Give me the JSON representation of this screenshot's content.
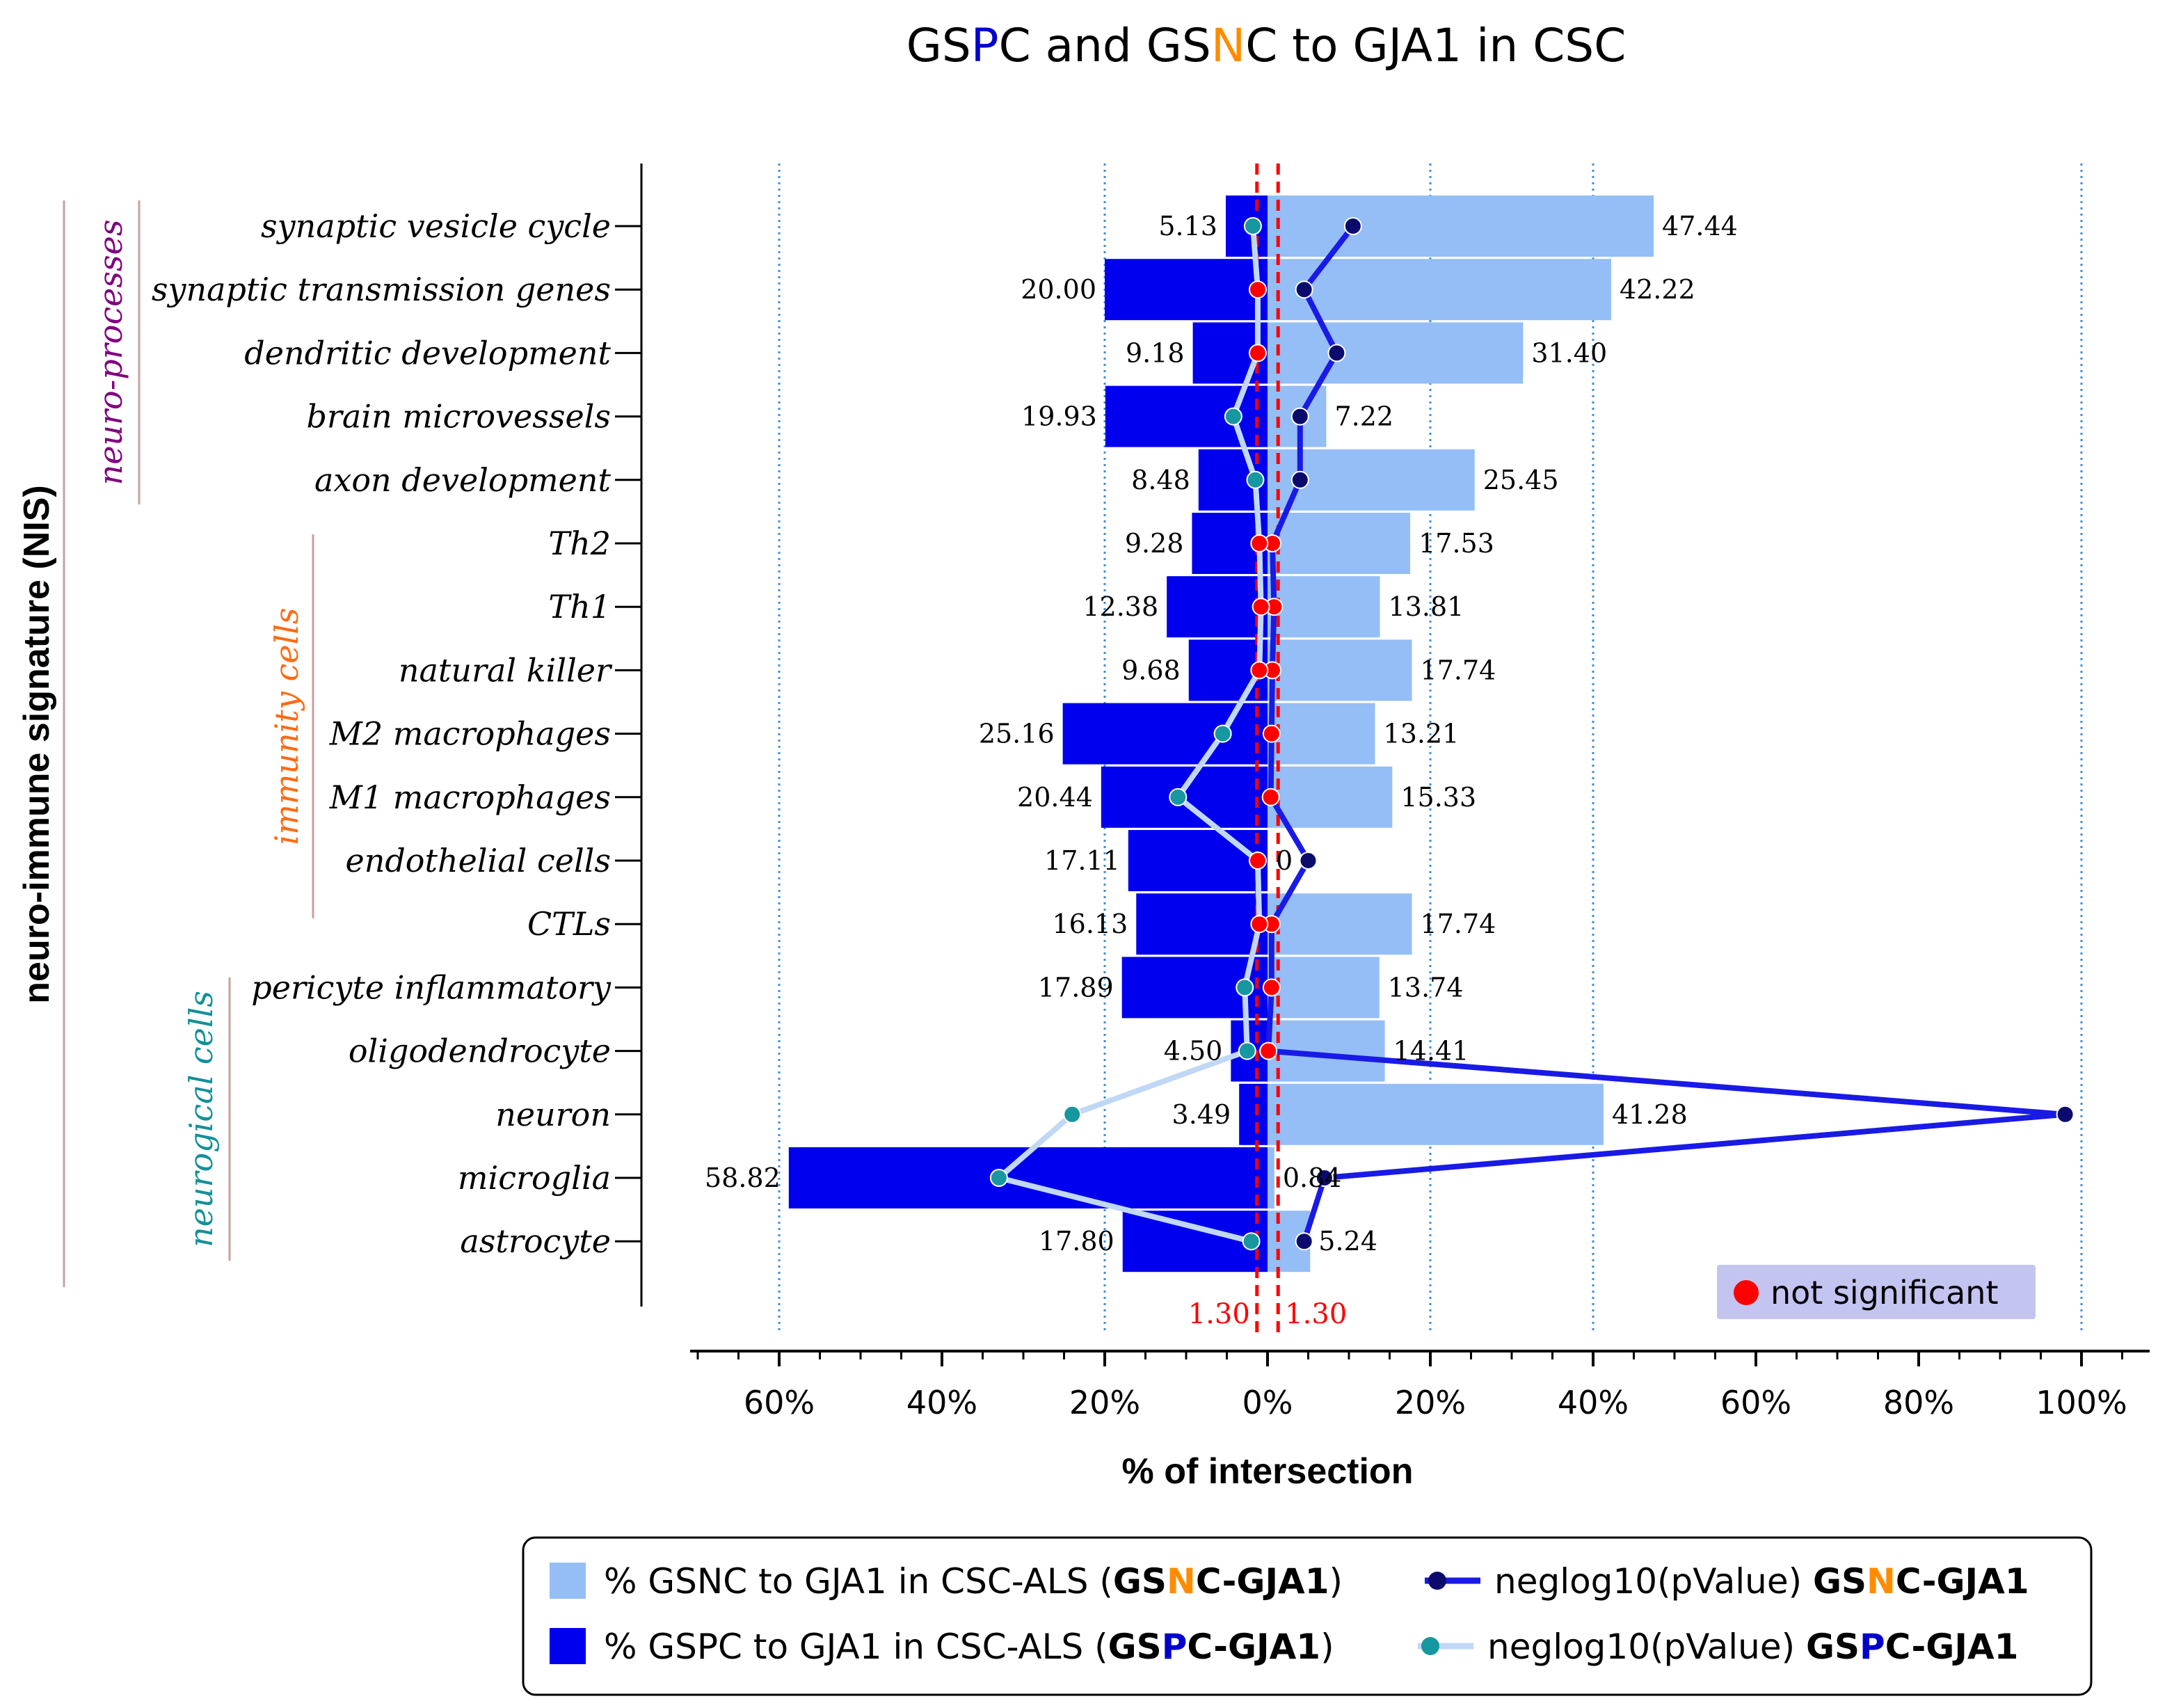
{
  "chart_data": {
    "type": "bar",
    "title_parts": [
      {
        "text": "GS",
        "color": "#000000"
      },
      {
        "text": "P",
        "color": "#0000cc"
      },
      {
        "text": "C and GS",
        "color": "#000000"
      },
      {
        "text": "N",
        "color": "#ff8c00"
      },
      {
        "text": "C to GJA1 in CSC",
        "color": "#000000"
      }
    ],
    "xlabel": "% of intersection",
    "ylabel": "neuro-immune signature (NIS)",
    "x_ticks": [
      {
        "value": -60,
        "label": "60%"
      },
      {
        "value": -40,
        "label": "40%"
      },
      {
        "value": -20,
        "label": "20%"
      },
      {
        "value": 0,
        "label": "0%"
      },
      {
        "value": 20,
        "label": "20%"
      },
      {
        "value": 40,
        "label": "40%"
      },
      {
        "value": 60,
        "label": "60%"
      },
      {
        "value": 80,
        "label": "80%"
      },
      {
        "value": 100,
        "label": "100%"
      }
    ],
    "xlim": [
      -70,
      110
    ],
    "gridlines_at": [
      -60,
      -20,
      20,
      40,
      100
    ],
    "categories": [
      "synaptic vesicle cycle",
      "synaptic transmission genes",
      "dendritic development",
      "brain microvessels",
      "axon development",
      "Th2",
      "Th1",
      "natural killer",
      "M2 macrophages",
      "M1 macrophages",
      "endothelial cells",
      "CTLs",
      "pericyte inflammatory",
      "oligodendrocyte",
      "neuron",
      "microglia",
      "astrocyte"
    ],
    "groups": [
      {
        "name": "neuro-processes",
        "color": "#800080",
        "from": 0,
        "to": 4
      },
      {
        "name": "immunity cells",
        "color": "#ff6a13",
        "from": 5,
        "to": 11
      },
      {
        "name": "neurogical cells",
        "color": "#12909a",
        "from": 12,
        "to": 16
      }
    ],
    "series": [
      {
        "name": "% GSPC to GJA1 in CSC-ALS (GSPC-GJA1)",
        "color": "#0000ee",
        "side": "left",
        "values": [
          5.13,
          20.0,
          9.18,
          19.93,
          8.48,
          9.28,
          12.38,
          9.68,
          25.16,
          20.44,
          17.11,
          16.13,
          17.89,
          4.5,
          3.49,
          58.82,
          17.8
        ],
        "labels": [
          "5.13",
          "20.00",
          "9.18",
          "19.93",
          "8.48",
          "9.28",
          "12.38",
          "9.68",
          "25.16",
          "20.44",
          "17.11",
          "16.13",
          "17.89",
          "4.50",
          "3.49",
          "58.82",
          "17.80"
        ]
      },
      {
        "name": "% GSNC to GJA1 in CSC-ALS (GSNC-GJA1)",
        "color": "#94bef5",
        "side": "right",
        "values": [
          47.44,
          42.22,
          31.4,
          7.22,
          25.45,
          17.53,
          13.81,
          17.74,
          13.21,
          15.33,
          0,
          17.74,
          13.74,
          14.41,
          41.28,
          0.84,
          5.24
        ],
        "labels": [
          "47.44",
          "42.22",
          "31.40",
          "7.22",
          "25.45",
          "17.53",
          "13.81",
          "17.74",
          "13.21",
          "15.33",
          "0",
          "17.74",
          "13.74",
          "14.41",
          "41.28",
          "0.84",
          "5.24"
        ]
      }
    ],
    "lines": [
      {
        "name": "neglog10(pValue) GSNC-GJA1",
        "color": "#1a1ae6",
        "marker_color": "#0b0b6e",
        "values": [
          10.5,
          4.5,
          8.5,
          4.0,
          4.0,
          0.6,
          0.8,
          0.6,
          0.5,
          0.4,
          5.0,
          0.5,
          0.5,
          0.1,
          98.0,
          7.0,
          4.5
        ],
        "significant": [
          true,
          true,
          true,
          true,
          true,
          false,
          false,
          false,
          false,
          false,
          true,
          false,
          false,
          false,
          true,
          true,
          true
        ]
      },
      {
        "name": "neglog10(pValue) GSPC-GJA1",
        "color": "#c0d8f5",
        "marker_color": "#17979f",
        "values": [
          -1.8,
          -1.2,
          -1.2,
          -4.2,
          -1.5,
          -1.0,
          -0.8,
          -1.0,
          -5.5,
          -11.0,
          -1.2,
          -1.0,
          -2.8,
          -2.5,
          -24.0,
          -33.0,
          -2.0
        ],
        "significant": [
          true,
          false,
          false,
          true,
          true,
          false,
          false,
          false,
          true,
          true,
          false,
          false,
          true,
          true,
          true,
          true,
          true
        ]
      }
    ],
    "thresholds": [
      {
        "value": -1.3,
        "label": "1.30"
      },
      {
        "value": 1.3,
        "label": "1.30"
      }
    ],
    "not_significant_label": "not significant",
    "not_significant_color": "#ff0000",
    "legend": {
      "placement": "bottom",
      "items": [
        {
          "kind": "box",
          "color": "#94bef5",
          "parts": [
            {
              "text": "% GSNC to GJA1 in CSC-ALS (",
              "bold": false,
              "color": "#000000"
            },
            {
              "text": "GS",
              "bold": true,
              "color": "#000000"
            },
            {
              "text": "N",
              "bold": true,
              "color": "#ff8c00"
            },
            {
              "text": "C-GJA1",
              "bold": true,
              "color": "#000000"
            },
            {
              "text": ")",
              "bold": false,
              "color": "#000000"
            }
          ]
        },
        {
          "kind": "line",
          "color": "#1a1ae6",
          "marker": "#0b0b6e",
          "parts": [
            {
              "text": "neglog10(pValue) ",
              "bold": false,
              "color": "#000000"
            },
            {
              "text": "GS",
              "bold": true,
              "color": "#000000"
            },
            {
              "text": "N",
              "bold": true,
              "color": "#ff8c00"
            },
            {
              "text": "C-GJA1",
              "bold": true,
              "color": "#000000"
            }
          ]
        },
        {
          "kind": "box",
          "color": "#0000ee",
          "parts": [
            {
              "text": "% GSPC to GJA1 in CSC-ALS (",
              "bold": false,
              "color": "#000000"
            },
            {
              "text": "GS",
              "bold": true,
              "color": "#000000"
            },
            {
              "text": "P",
              "bold": true,
              "color": "#0000cc"
            },
            {
              "text": "C-GJA1",
              "bold": true,
              "color": "#000000"
            },
            {
              "text": ")",
              "bold": false,
              "color": "#000000"
            }
          ]
        },
        {
          "kind": "line",
          "color": "#c0d8f5",
          "marker": "#17979f",
          "parts": [
            {
              "text": "neglog10(pValue) ",
              "bold": false,
              "color": "#000000"
            },
            {
              "text": "GS",
              "bold": true,
              "color": "#000000"
            },
            {
              "text": "P",
              "bold": true,
              "color": "#0000cc"
            },
            {
              "text": "C-GJA1",
              "bold": true,
              "color": "#000000"
            }
          ]
        }
      ]
    }
  }
}
